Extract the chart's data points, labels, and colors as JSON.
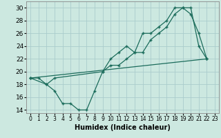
{
  "xlabel": "Humidex (Indice chaleur)",
  "xlim": [
    -0.5,
    23.5
  ],
  "ylim": [
    13.5,
    31.0
  ],
  "xticks": [
    0,
    1,
    2,
    3,
    4,
    5,
    6,
    7,
    8,
    9,
    10,
    11,
    12,
    13,
    14,
    15,
    16,
    17,
    18,
    19,
    20,
    21,
    22,
    23
  ],
  "yticks": [
    14,
    16,
    18,
    20,
    22,
    24,
    26,
    28,
    30
  ],
  "bg_color": "#cce8e0",
  "grid_color": "#aacccc",
  "line_color": "#1a6b5a",
  "line1_x": [
    0,
    1,
    2,
    3,
    4,
    5,
    6,
    7,
    8,
    9,
    10,
    11,
    12,
    13,
    14,
    15,
    16,
    17,
    18,
    19,
    20,
    21,
    22
  ],
  "line1_y": [
    19,
    19,
    18,
    17,
    15,
    15,
    14,
    14,
    17,
    20,
    21,
    21,
    22,
    23,
    23,
    25,
    26,
    27,
    29,
    30,
    30,
    24,
    22
  ],
  "line2_x": [
    0,
    2,
    3,
    9,
    10,
    11,
    12,
    13,
    14,
    15,
    16,
    17,
    18,
    19,
    20,
    21,
    22
  ],
  "line2_y": [
    19,
    18,
    19,
    20,
    22,
    23,
    24,
    23,
    26,
    26,
    27,
    28,
    30,
    30,
    29,
    26,
    22
  ],
  "line3_x": [
    0,
    22
  ],
  "line3_y": [
    19,
    22
  ]
}
